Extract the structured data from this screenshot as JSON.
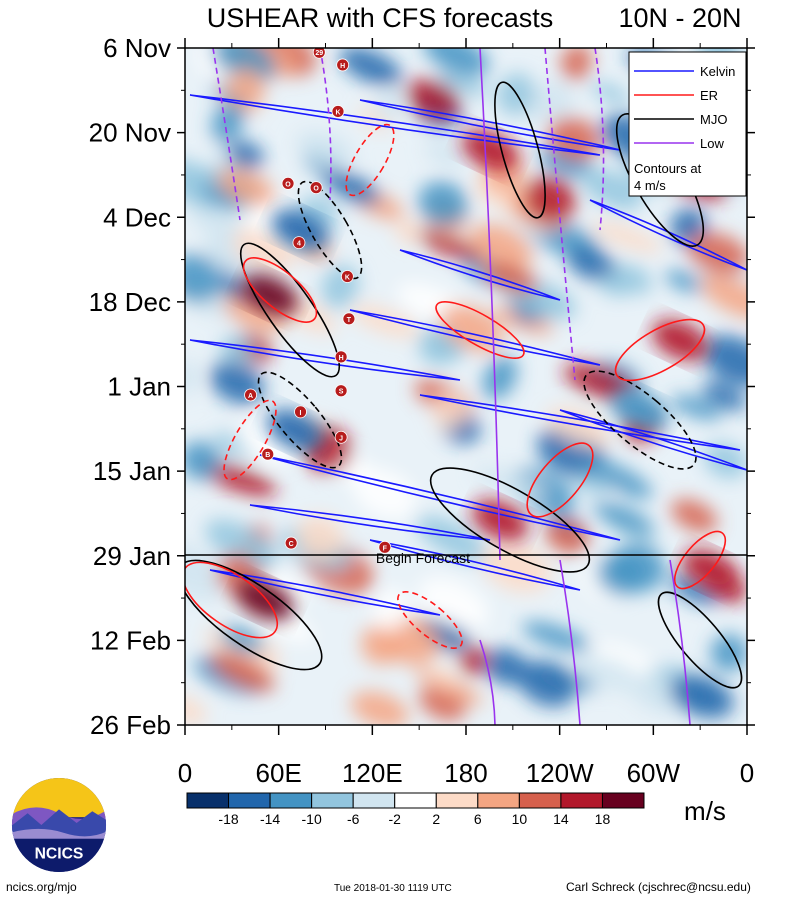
{
  "chart_data": {
    "type": "heatmap",
    "title": "USHEAR with CFS forecasts",
    "region": "10N - 20N",
    "x_ticks": [
      "0",
      "60E",
      "120E",
      "180",
      "120W",
      "60W",
      "0"
    ],
    "y_ticks": [
      "6 Nov",
      "20 Nov",
      "4 Dec",
      "18 Dec",
      "1 Jan",
      "15 Jan",
      "29 Jan",
      "12 Feb",
      "26 Feb"
    ],
    "forecast_start": "29 Jan",
    "forecast_label": "Begin Forecast",
    "legend": {
      "placement": "top-right",
      "entries": [
        {
          "name": "Kelvin",
          "color": "#1a1aff"
        },
        {
          "name": "ER",
          "color": "#ff1a1a"
        },
        {
          "name": "MJO",
          "color": "#000000"
        },
        {
          "name": "Low",
          "color": "#9933ee"
        }
      ],
      "note_line1": "Contours at",
      "note_line2": "4 m/s"
    },
    "colorbar": {
      "unit": "m/s",
      "levels": [
        "-18",
        "-14",
        "-10",
        "-6",
        "-2",
        "2",
        "6",
        "10",
        "14",
        "18"
      ],
      "colors": [
        "#08306b",
        "#2166ac",
        "#4393c3",
        "#92c5de",
        "#d1e5f0",
        "#ffffff",
        "#fddbc7",
        "#f4a582",
        "#d6604d",
        "#b2182b",
        "#67001f"
      ]
    },
    "storms": [
      {
        "label": "29",
        "lon": 86,
        "date_index": 0.05
      },
      {
        "label": "H",
        "lon": 101,
        "date_index": 0.2
      },
      {
        "label": "K",
        "lon": 98,
        "date_index": 0.75
      },
      {
        "label": "O",
        "lon": 66,
        "date_index": 1.6
      },
      {
        "label": "O",
        "lon": 84,
        "date_index": 1.65
      },
      {
        "label": "4",
        "lon": 73,
        "date_index": 2.3
      },
      {
        "label": "K",
        "lon": 104,
        "date_index": 2.7
      },
      {
        "label": "T",
        "lon": 105,
        "date_index": 3.2
      },
      {
        "label": "H",
        "lon": 100,
        "date_index": 3.65
      },
      {
        "label": "A",
        "lon": 42,
        "date_index": 4.1
      },
      {
        "label": "S",
        "lon": 100,
        "date_index": 4.05
      },
      {
        "label": "I",
        "lon": 74,
        "date_index": 4.3
      },
      {
        "label": "J",
        "lon": 100,
        "date_index": 4.6
      },
      {
        "label": "B",
        "lon": 53,
        "date_index": 4.8
      },
      {
        "label": "C",
        "lon": 68,
        "date_index": 5.85
      },
      {
        "label": "F",
        "lon": 128,
        "date_index": 5.9
      }
    ]
  },
  "footer": {
    "left": "ncics.org/mjo",
    "center": "Tue 2018-01-30 1119 UTC",
    "right": "Carl Schreck (cjschrec@ncsu.edu)"
  },
  "logo": {
    "text": "NCICS"
  }
}
